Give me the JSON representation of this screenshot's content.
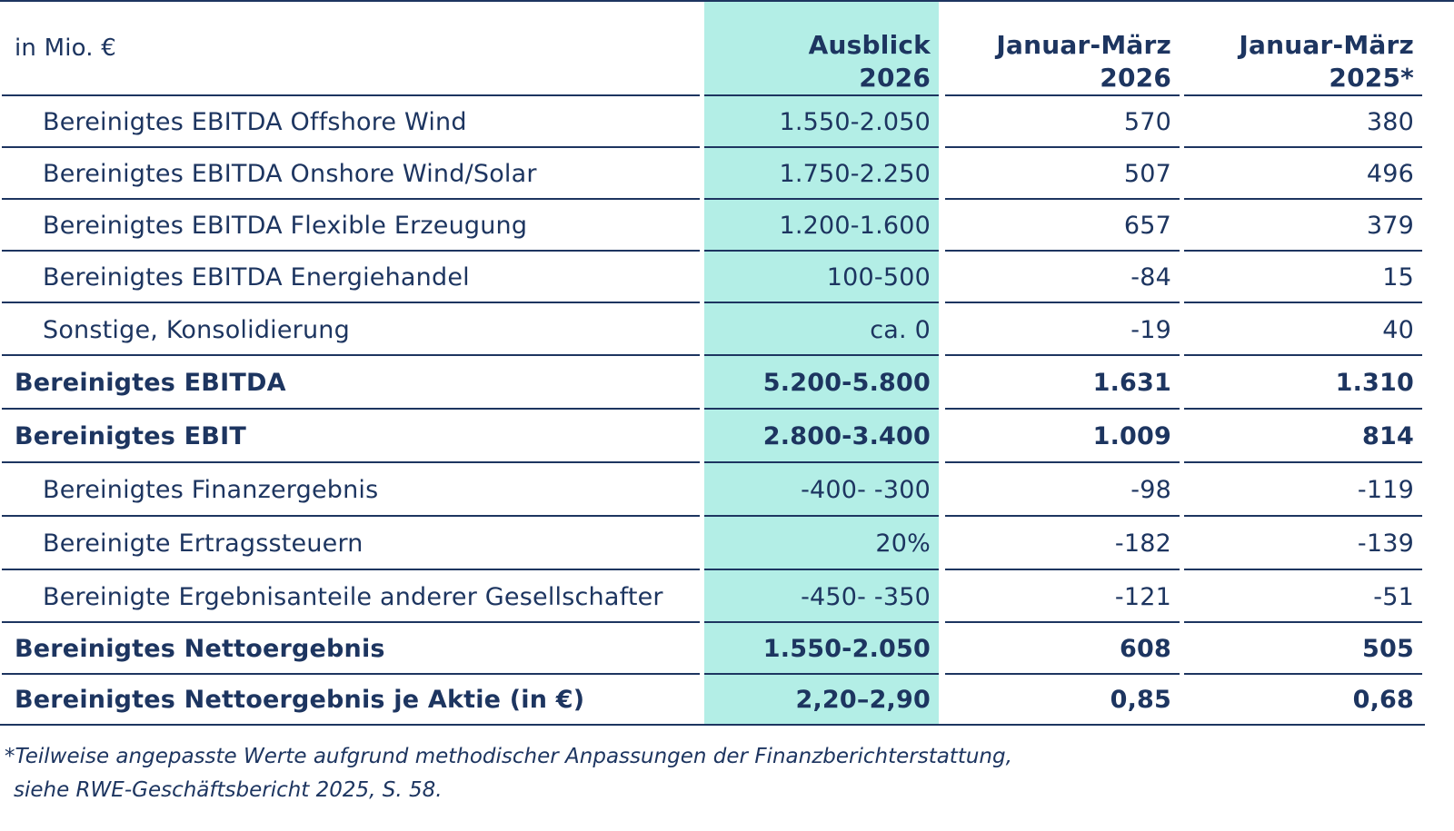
{
  "header": {
    "unit_label": "in Mio. €",
    "columns": [
      {
        "line1": "Ausblick",
        "line2": "2026"
      },
      {
        "line1": "Januar-März",
        "line2": "2026"
      },
      {
        "line1": "Januar-März",
        "line2": "2025*"
      }
    ]
  },
  "rows": [
    {
      "label": "Bereinigtes EBITDA Offshore Wind",
      "values": [
        "1.550-2.050",
        "570",
        "380"
      ],
      "bold": false
    },
    {
      "label": "Bereinigtes EBITDA Onshore Wind/Solar",
      "values": [
        "1.750-2.250",
        "507",
        "496"
      ],
      "bold": false
    },
    {
      "label": "Bereinigtes EBITDA Flexible Erzeugung",
      "values": [
        "1.200-1.600",
        "657",
        "379"
      ],
      "bold": false
    },
    {
      "label": "Bereinigtes EBITDA Energiehandel",
      "values": [
        "100-500",
        "-84",
        "15"
      ],
      "bold": false
    },
    {
      "label": "Sonstige, Konsolidierung",
      "values": [
        "ca. 0",
        "-19",
        "40"
      ],
      "bold": false
    },
    {
      "label": "Bereinigtes EBITDA",
      "values": [
        "5.200-5.800",
        "1.631",
        "1.310"
      ],
      "bold": true
    },
    {
      "label": "Bereinigtes EBIT",
      "values": [
        "2.800-3.400",
        "1.009",
        "814"
      ],
      "bold": true
    },
    {
      "label": "Bereinigtes Finanzergebnis",
      "values": [
        "-400- -300",
        "-98",
        "-119"
      ],
      "bold": false
    },
    {
      "label": "Bereinigte Ertragssteuern",
      "values": [
        "20%",
        "-182",
        "-139"
      ],
      "bold": false
    },
    {
      "label": "Bereinigte Ergebnisanteile anderer Gesellschafter",
      "values": [
        "-450- -350",
        "-121",
        "-51"
      ],
      "bold": false
    },
    {
      "label": "Bereinigtes Nettoergebnis",
      "values": [
        "1.550-2.050",
        "608",
        "505"
      ],
      "bold": true
    },
    {
      "label": "Bereinigtes Nettoergebnis je Aktie (in €)",
      "values": [
        "2,20–2,90",
        "0,85",
        "0,68"
      ],
      "bold": true
    }
  ],
  "footnote": {
    "line1": "*Teilweise angepasste Werte aufgrund methodischer Anpassungen der Finanzberichterstattung,",
    "line2": "siehe RWE-Geschäftsbericht 2025, S. 58."
  },
  "colors": {
    "text": "#1d3560",
    "highlight_column": "#b3eee6"
  }
}
